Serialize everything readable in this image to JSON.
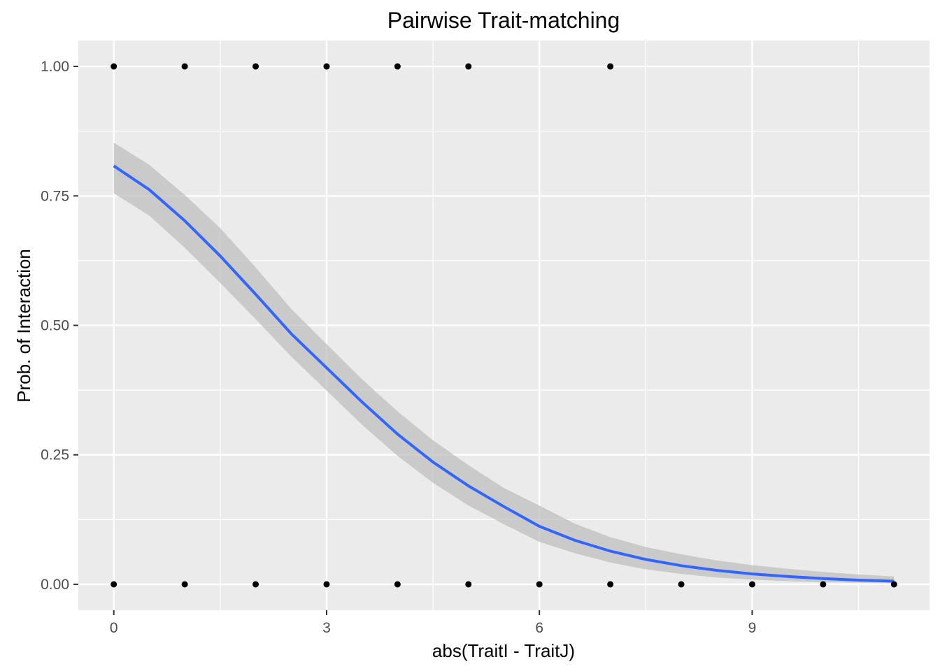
{
  "chart_data": {
    "type": "scatter",
    "title": "Pairwise Trait-matching",
    "xlabel": "abs(TraitI - TraitJ)",
    "ylabel": "Prob. of Interaction",
    "xlim": [
      -0.5,
      11.5
    ],
    "ylim": [
      -0.05,
      1.05
    ],
    "x_ticks": [
      0,
      3,
      6,
      9
    ],
    "x_tick_labels": [
      "0",
      "3",
      "6",
      "9"
    ],
    "y_ticks": [
      0,
      0.25,
      0.5,
      0.75,
      1
    ],
    "y_tick_labels": [
      "0.00",
      "0.25",
      "0.50",
      "0.75",
      "1.00"
    ],
    "grid": true,
    "points": [
      {
        "x": 0,
        "y": 1
      },
      {
        "x": 1,
        "y": 1
      },
      {
        "x": 2,
        "y": 1
      },
      {
        "x": 3,
        "y": 1
      },
      {
        "x": 4,
        "y": 1
      },
      {
        "x": 5,
        "y": 1
      },
      {
        "x": 7,
        "y": 1
      },
      {
        "x": 0,
        "y": 0
      },
      {
        "x": 1,
        "y": 0
      },
      {
        "x": 2,
        "y": 0
      },
      {
        "x": 3,
        "y": 0
      },
      {
        "x": 4,
        "y": 0
      },
      {
        "x": 5,
        "y": 0
      },
      {
        "x": 6,
        "y": 0
      },
      {
        "x": 7,
        "y": 0
      },
      {
        "x": 8,
        "y": 0
      },
      {
        "x": 9,
        "y": 0
      },
      {
        "x": 10,
        "y": 0
      },
      {
        "x": 11,
        "y": 0
      }
    ],
    "fit": {
      "x": [
        0,
        0.5,
        1,
        1.5,
        2,
        2.5,
        3,
        3.5,
        4,
        4.5,
        5,
        5.5,
        6,
        6.5,
        7,
        7.5,
        8,
        8.5,
        9,
        9.5,
        10,
        10.5,
        11
      ],
      "y": [
        0.808,
        0.762,
        0.702,
        0.634,
        0.56,
        0.484,
        0.418,
        0.352,
        0.29,
        0.236,
        0.19,
        0.15,
        0.112,
        0.085,
        0.064,
        0.048,
        0.036,
        0.027,
        0.02,
        0.015,
        0.011,
        0.008,
        0.006
      ],
      "lower": [
        0.755,
        0.712,
        0.65,
        0.582,
        0.512,
        0.44,
        0.374,
        0.308,
        0.248,
        0.196,
        0.152,
        0.116,
        0.082,
        0.06,
        0.042,
        0.029,
        0.02,
        0.013,
        0.009,
        0.006,
        0.004,
        0.003,
        0.002
      ],
      "upper": [
        0.853,
        0.81,
        0.752,
        0.688,
        0.612,
        0.532,
        0.464,
        0.396,
        0.334,
        0.278,
        0.23,
        0.186,
        0.152,
        0.117,
        0.091,
        0.072,
        0.058,
        0.046,
        0.037,
        0.03,
        0.024,
        0.019,
        0.015
      ]
    },
    "colors": {
      "panel": "#ebebeb",
      "grid_major": "#ffffff",
      "point": "#000000",
      "line": "#3366ff",
      "ribbon": "#bfbfbf"
    }
  }
}
